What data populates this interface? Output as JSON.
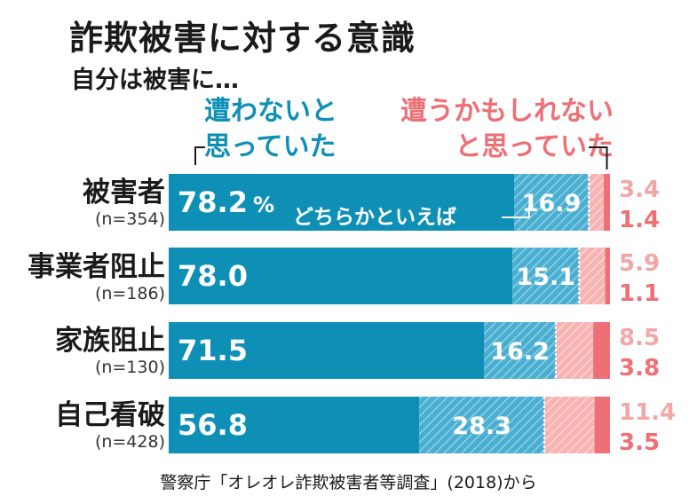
{
  "title": "詐欺被害に対する意識",
  "subtitle": "自分は被害に…",
  "legend": {
    "not_expected_line1": "遭わないと",
    "not_expected_line2": "思っていた",
    "expected_line1": "遭うかもしれない",
    "expected_line2": "と思っていた",
    "somewhat_note": "どちらかといえば"
  },
  "source": "警察庁「オレオレ詐欺被害者等調査」(2018)から",
  "colors": {
    "not_expected": "#0e90b6",
    "somewhat_not_expected": "#6cc1dc",
    "somewhat_expected": "#f5b1b0",
    "expected": "#ee6f75"
  },
  "chart_data": {
    "type": "bar",
    "orientation": "horizontal",
    "stacked": true,
    "unit": "%",
    "categories": [
      "被害者",
      "事業者阻止",
      "家族阻止",
      "自己看破"
    ],
    "sample_sizes": [
      "(n=354)",
      "(n=186)",
      "(n=130)",
      "(n=428)"
    ],
    "series": [
      {
        "name": "遭わないと思っていた",
        "values": [
          78.2,
          78.0,
          71.5,
          56.8
        ]
      },
      {
        "name": "どちらかといえば遭わないと思っていた",
        "values": [
          16.9,
          15.1,
          16.2,
          28.3
        ]
      },
      {
        "name": "どちらかといえば遭うかもしれないと思っていた",
        "values": [
          3.4,
          5.9,
          8.5,
          11.4
        ]
      },
      {
        "name": "遭うかもしれないと思っていた",
        "values": [
          1.4,
          1.1,
          3.8,
          3.5
        ]
      }
    ],
    "value_labels": [
      [
        "78.2",
        "16.9",
        "3.4",
        "1.4"
      ],
      [
        "78.0",
        "15.1",
        "5.9",
        "1.1"
      ],
      [
        "71.5",
        "16.2",
        "8.5",
        "3.8"
      ],
      [
        "56.8",
        "28.3",
        "11.4",
        "3.5"
      ]
    ],
    "first_value_suffix": "%",
    "xlim": [
      0,
      100
    ]
  }
}
